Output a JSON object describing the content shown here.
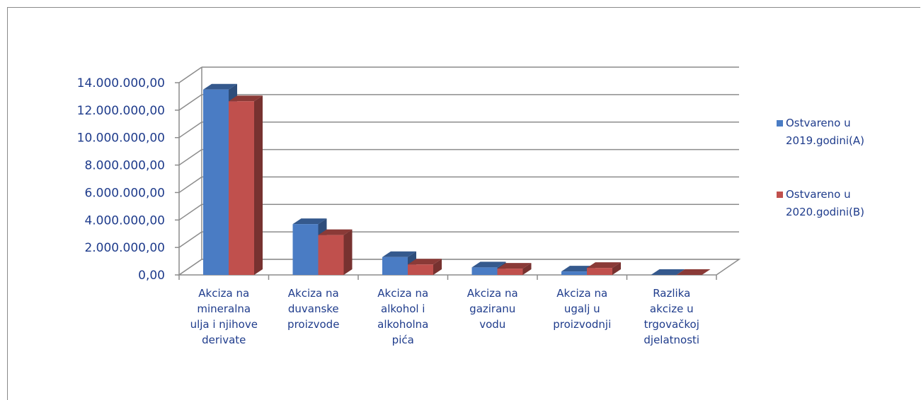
{
  "chart_data": {
    "type": "bar",
    "categories": [
      [
        "Akciza na",
        "mineralna",
        "ulja i njihove",
        "derivate"
      ],
      [
        "Akciza na",
        "duvanske",
        "proizvode"
      ],
      [
        "Akciza na",
        "alkohol i",
        "alkoholna",
        "pića"
      ],
      [
        "Akciza na",
        "gaziranu",
        "vodu"
      ],
      [
        "Akciza na",
        "ugalj u",
        "proizvodnji"
      ],
      [
        "Razlika",
        "akcize u",
        "trgovačkoj",
        "djelatnosti"
      ]
    ],
    "series": [
      {
        "name": [
          "Ostvareno u",
          "2019.godini(A)"
        ],
        "color": "#4a7cc4",
        "values": [
          13500000,
          3700000,
          1300000,
          550000,
          250000,
          0
        ]
      },
      {
        "name": [
          "Ostvareno u",
          "2020.godini(B)"
        ],
        "color": "#c0504d",
        "values": [
          12650000,
          2900000,
          760000,
          460000,
          510000,
          0
        ]
      }
    ],
    "ylim": [
      0,
      14000000
    ],
    "yticks": [
      "0,00",
      "2.000.000,00",
      "4.000.000,00",
      "6.000.000,00",
      "8.000.000,00",
      "10.000.000,00",
      "12.000.000,00",
      "14.000.000,00"
    ],
    "grid": true,
    "legend_position": "right"
  }
}
